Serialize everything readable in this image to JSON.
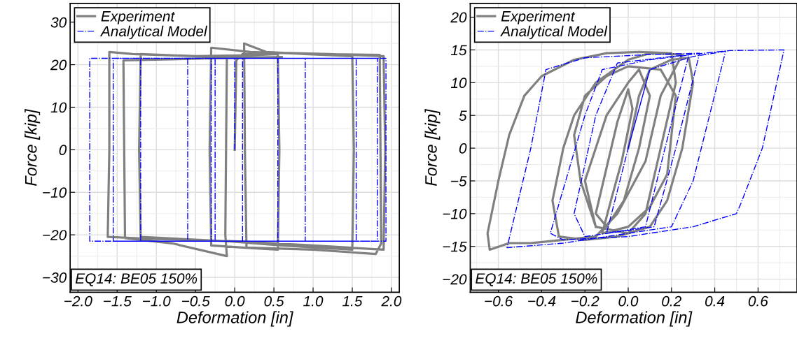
{
  "chart_data": [
    {
      "type": "line",
      "xlabel": "Deformation [in]",
      "ylabel": "Force [kip]",
      "xlim": [
        -2.1,
        2.1
      ],
      "ylim": [
        -33.5,
        34.4
      ],
      "xticks": [
        {
          "value": -2.0,
          "label": "−2.0"
        },
        {
          "value": -1.5,
          "label": "−1.5"
        },
        {
          "value": -1.0,
          "label": "−1.0"
        },
        {
          "value": -0.5,
          "label": "−0.5"
        },
        {
          "value": 0.0,
          "label": "0.0"
        },
        {
          "value": 0.5,
          "label": "0.5"
        },
        {
          "value": 1.0,
          "label": "1.0"
        },
        {
          "value": 1.5,
          "label": "1.5"
        },
        {
          "value": 2.0,
          "label": "2.0"
        }
      ],
      "yticks": [
        {
          "value": -30,
          "label": "−30"
        },
        {
          "value": -20,
          "label": "−20"
        },
        {
          "value": -10,
          "label": "−10"
        },
        0,
        10,
        20,
        30
      ],
      "grid": true,
      "legend": "top left",
      "annotations": [
        "EQ14: BE05 150%"
      ],
      "series": [
        {
          "name": "Experiment",
          "color": "#808080",
          "line_style": "solid",
          "x": [
            0,
            0.02,
            0.1,
            0.6,
            1.2,
            1.9,
            1.92,
            1.9,
            1.0,
            0.0,
            -1.0,
            -1.62,
            -1.6,
            -1.6,
            -1.3,
            -0.5,
            0.2,
            0.55,
            0.57,
            0.55,
            0.1,
            -0.3,
            -0.32,
            -0.3,
            0.2,
            1.0,
            1.85,
            1.87,
            1.8,
            1.0,
            0.15,
            0.13,
            0.12,
            0.4,
            0.9,
            1.5,
            1.52,
            1.5,
            0.6,
            -0.1,
            -1.2,
            -1.22,
            -1.2,
            -0.5,
            -0.1,
            -0.12,
            -0.1,
            -0.8,
            -1.4,
            -1.42,
            -0.3,
            0.6
          ],
          "values": [
            0,
            21,
            22.5,
            22.8,
            22.5,
            22,
            0,
            -23.5,
            -22.5,
            -21.5,
            -21,
            -20.5,
            0,
            23,
            22.5,
            22,
            22.2,
            22.5,
            0,
            -23.5,
            -23,
            -22.5,
            0,
            24,
            23,
            22.5,
            22.3,
            -22,
            -24.5,
            -23.5,
            -23,
            0,
            25,
            23,
            22.5,
            22,
            0,
            -23.5,
            -22.5,
            -21.5,
            -20.5,
            0,
            22.5,
            22,
            22,
            -20,
            -25,
            -22,
            -20.8,
            21,
            21.5,
            21.8
          ]
        },
        {
          "name": "Analytical Model",
          "color": "#0000ff",
          "line_style": "dashdot",
          "x": [
            0,
            0,
            1.93,
            1.93,
            -1.85,
            -1.85,
            0.55,
            0.55,
            -0.3,
            -0.3,
            1.82,
            1.82,
            0.1,
            0.1,
            1.55,
            1.55,
            -1.55,
            -1.55,
            -0.25,
            -0.25,
            -1.2,
            -1.2,
            0.9,
            0.9,
            -0.6,
            -0.6
          ],
          "values": [
            0,
            21.5,
            21.5,
            -21.5,
            -21.5,
            21.5,
            21.5,
            -21.5,
            -21.5,
            21.5,
            21.5,
            -21.5,
            -21.5,
            21.5,
            21.5,
            -21.5,
            -21.5,
            21.5,
            21.5,
            -21.5,
            -21.5,
            21.5,
            21.5,
            -21.5,
            -21.5,
            21.5
          ]
        }
      ]
    },
    {
      "type": "line",
      "xlabel": "Deformation [in]",
      "ylabel": "Force [kip]",
      "xlim": [
        -0.73,
        0.78
      ],
      "ylim": [
        -22,
        22.1
      ],
      "xticks": [
        {
          "value": -0.6,
          "label": "−0.6"
        },
        {
          "value": -0.4,
          "label": "−0.4"
        },
        {
          "value": -0.2,
          "label": "−0.2"
        },
        {
          "value": 0.0,
          "label": "0.0"
        },
        {
          "value": 0.2,
          "label": "0.2"
        },
        {
          "value": 0.4,
          "label": "0.4"
        },
        {
          "value": 0.6,
          "label": "0.6"
        }
      ],
      "yticks": [
        {
          "value": -20,
          "label": "−20"
        },
        {
          "value": -15,
          "label": "−15"
        },
        {
          "value": -10,
          "label": "−10"
        },
        {
          "value": -5,
          "label": "−5"
        },
        0,
        5,
        10,
        15,
        20
      ],
      "grid": true,
      "legend": "top left",
      "annotations": [
        "EQ14: BE05 150%"
      ],
      "series": [
        {
          "name": "Experiment",
          "color": "#808080",
          "line_style": "solid",
          "x": [
            0,
            0.05,
            0.1,
            0.2,
            0.28,
            0.3,
            0.25,
            0.18,
            0.1,
            -0.05,
            -0.2,
            -0.32,
            -0.35,
            -0.3,
            -0.25,
            -0.15,
            0.0,
            0.1,
            0.25,
            0.15,
            0.08,
            -0.05,
            -0.15,
            -0.45,
            -0.55,
            -0.64,
            -0.65,
            -0.6,
            -0.55,
            -0.48,
            -0.4,
            -0.25,
            -0.1,
            0.05,
            0.2,
            0.22,
            0.15,
            0.08,
            0.0,
            -0.15,
            -0.2,
            -0.1,
            0.0,
            0.05,
            0.1,
            0.05,
            -0.02,
            -0.1,
            -0.15,
            -0.1,
            -0.05,
            0.0,
            0.02,
            -0.03,
            -0.08,
            -0.12,
            0.0,
            0.1,
            0.18,
            0.2,
            0.22,
            0.15,
            0.0,
            -0.1,
            -0.2,
            -0.25,
            -0.22,
            -0.15
          ],
          "values": [
            0,
            8,
            12,
            13.5,
            13.8,
            10,
            0,
            -8,
            -12,
            -13.5,
            -14,
            -13.5,
            -8,
            0,
            5,
            10,
            13.5,
            14.5,
            14.3,
            8,
            -2,
            -10,
            -13.5,
            -14.5,
            -14.5,
            -15.5,
            -13,
            -5,
            2,
            8,
            11,
            13.5,
            14.5,
            14.7,
            14.5,
            10,
            0,
            -10,
            -13,
            -12,
            -5,
            5,
            10,
            12,
            8,
            0,
            -8,
            -12,
            -10,
            -3,
            4,
            9,
            6,
            -2,
            -8,
            -13,
            -12,
            -9,
            -4,
            2,
            8,
            12,
            12.5,
            11,
            8,
            2,
            -5,
            -12
          ]
        },
        {
          "name": "Analytical Model",
          "color": "#0000ff",
          "line_style": "dashdot",
          "x": [
            0,
            0.1,
            0.3,
            0.45,
            0.3,
            0.2,
            -0.1,
            -0.3,
            -0.56,
            -0.45,
            -0.38,
            -0.2,
            0.1,
            0.33,
            0.22,
            0.12,
            -0.2,
            -0.25,
            -0.15,
            -0.05,
            0.2,
            0.47,
            0.72,
            0.62,
            0.52,
            0.5,
            0.3,
            0.0,
            -0.3,
            -0.36,
            -0.2,
            -0.12,
            0.1,
            0.28,
            0.17,
            0.08,
            -0.1,
            0.0,
            0.1
          ],
          "values": [
            0,
            12,
            14,
            14.8,
            -5,
            -12,
            -13.5,
            -14.5,
            -15.2,
            0,
            12,
            13.8,
            14.3,
            14.5,
            0,
            -12,
            -13.5,
            -10,
            5,
            13,
            14,
            14.9,
            15.0,
            0,
            -8.5,
            -10,
            -12,
            -13.5,
            -14,
            -13,
            5,
            12,
            13.5,
            14.2,
            0,
            -12,
            -13,
            0,
            12
          ]
        }
      ]
    }
  ]
}
